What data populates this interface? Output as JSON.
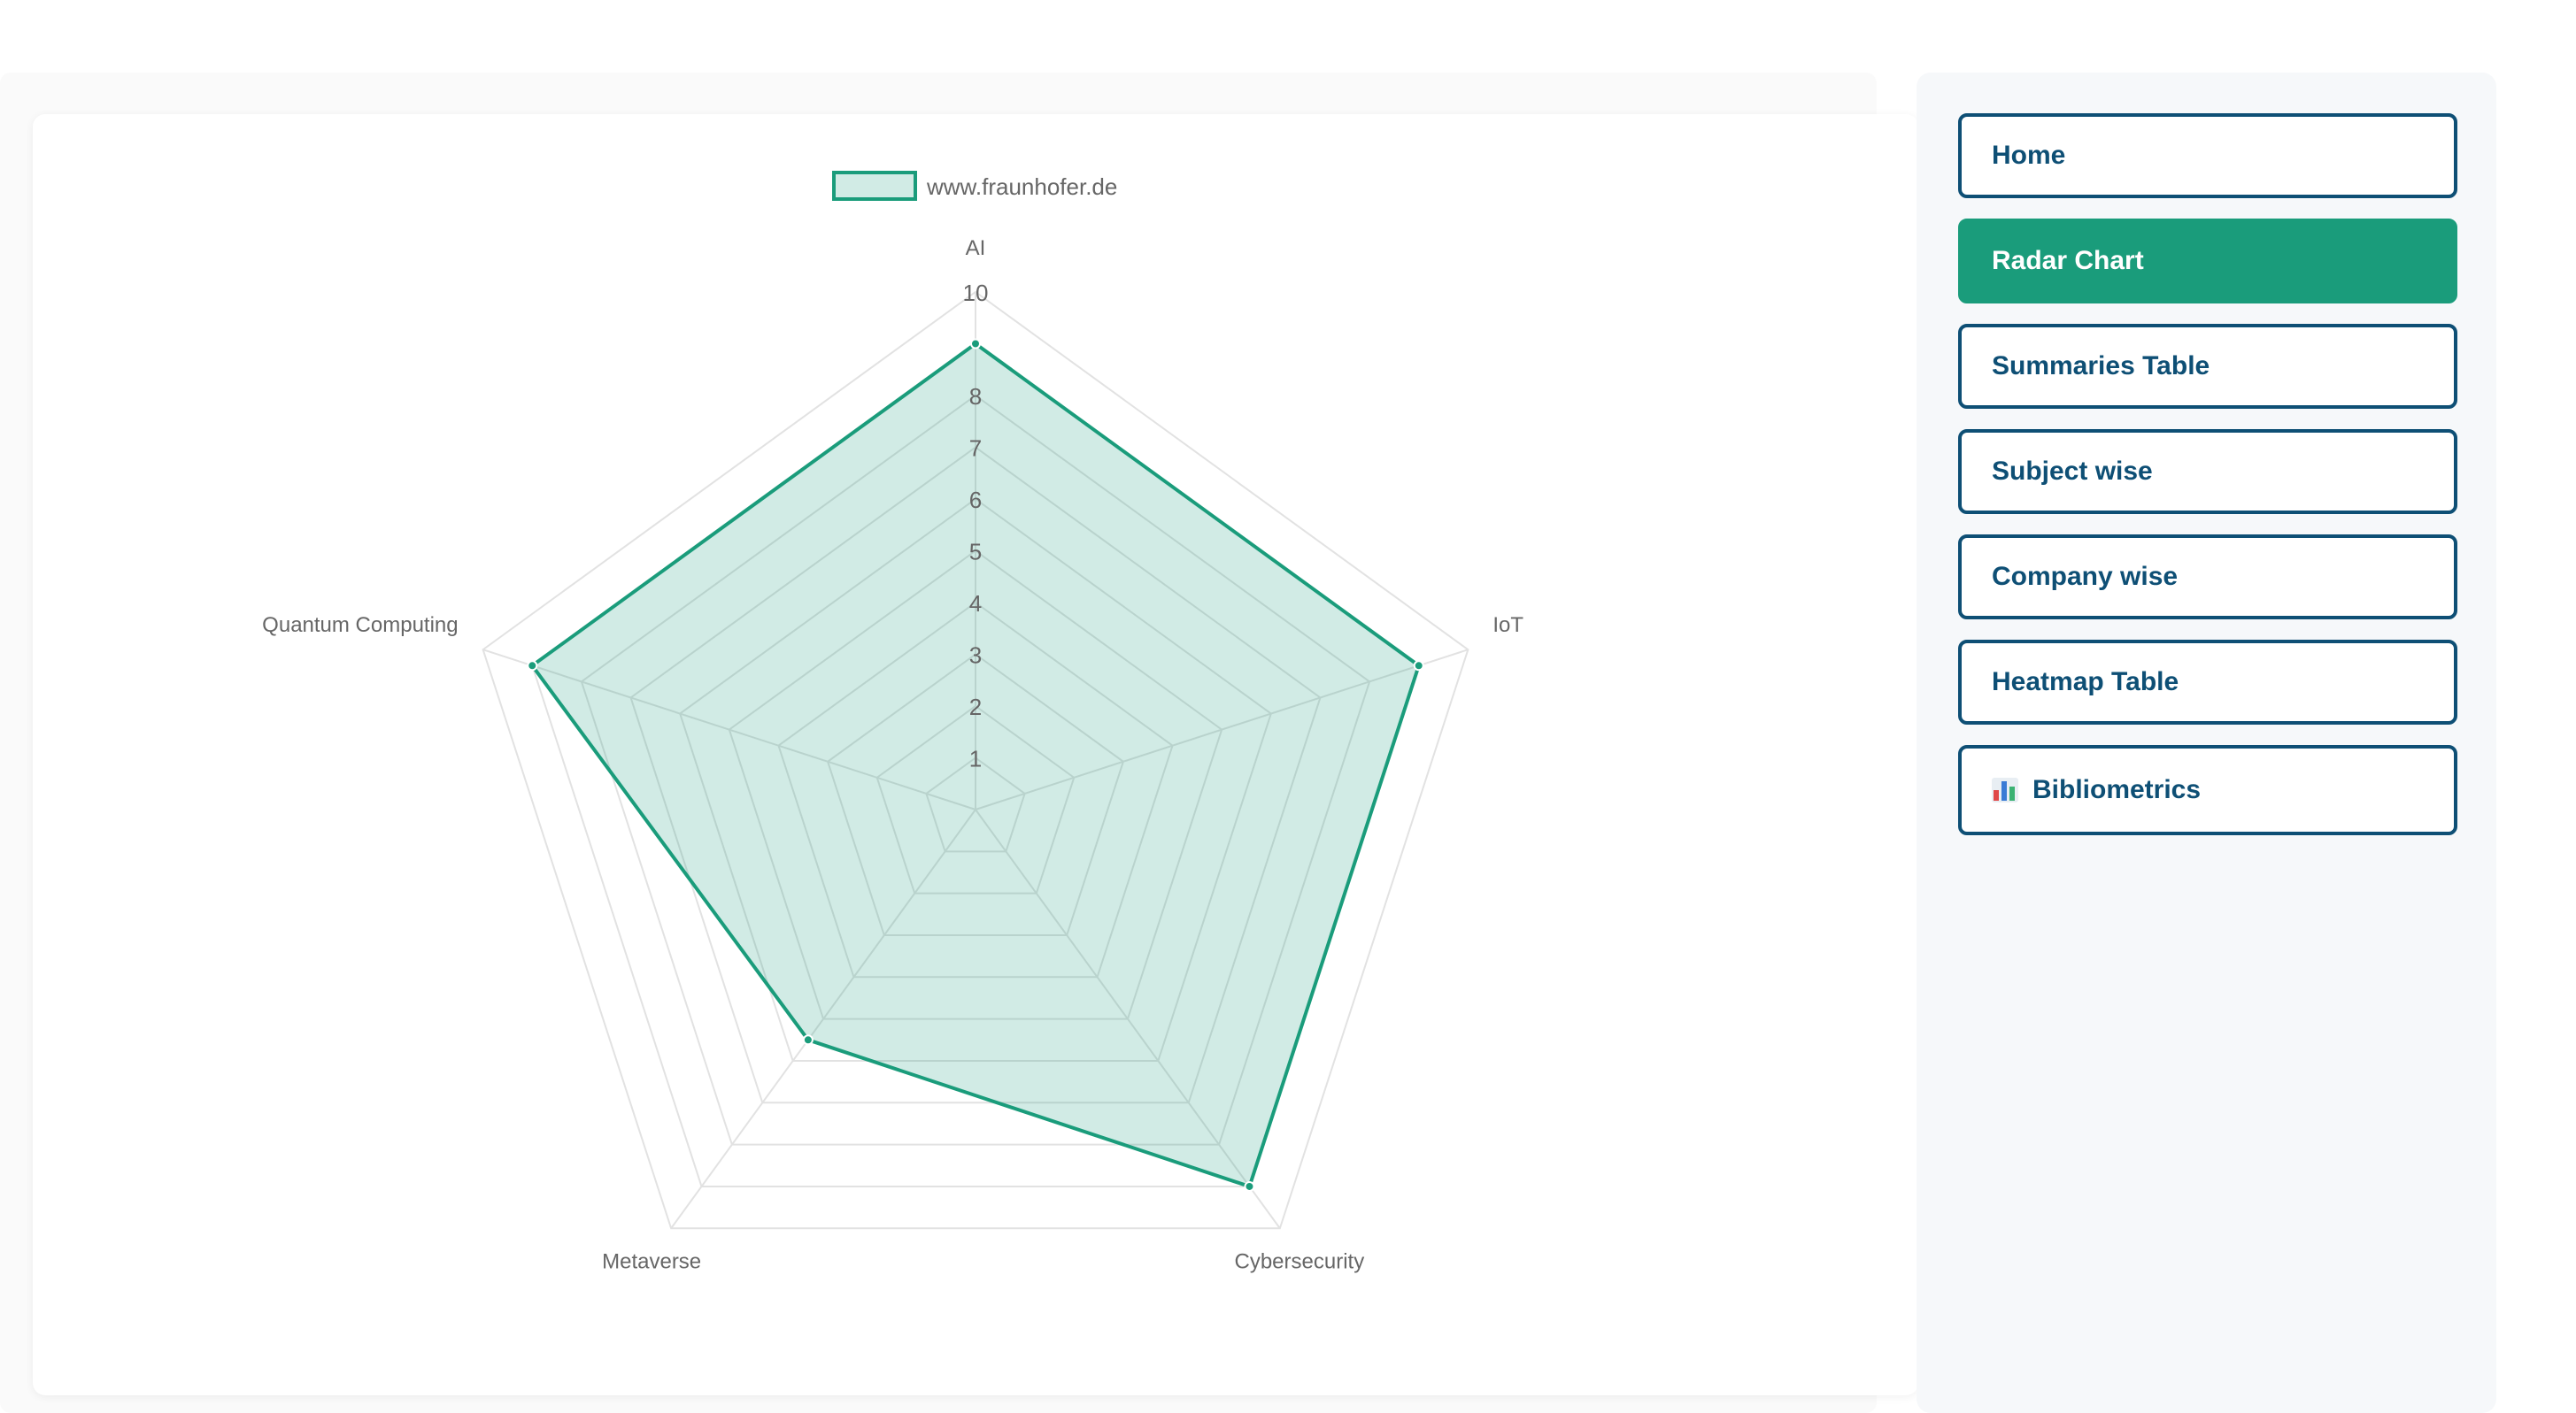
{
  "nav": {
    "items": [
      {
        "label": "Home",
        "active": false
      },
      {
        "label": "Radar Chart",
        "active": true
      },
      {
        "label": "Summaries Table",
        "active": false
      },
      {
        "label": "Subject wise",
        "active": false
      },
      {
        "label": "Company wise",
        "active": false
      },
      {
        "label": "Heatmap Table",
        "active": false
      },
      {
        "label": "Bibliometrics",
        "active": false,
        "icon": "bar-chart-icon"
      }
    ]
  },
  "colors": {
    "accent": "#1a9c7b",
    "nav_border": "#0e4f75",
    "series_fill": "rgba(26,156,123,0.2)"
  },
  "chart_data": {
    "type": "radar",
    "categories": [
      "AI",
      "IoT",
      "Cybersecurity",
      "Metaverse",
      "Quantum Computing"
    ],
    "series": [
      {
        "name": "www.fraunhofer.de",
        "values": [
          9,
          9,
          9,
          5.5,
          9
        ]
      }
    ],
    "rlim": [
      0,
      10
    ],
    "tick_labels": [
      "1",
      "2",
      "3",
      "4",
      "5",
      "6",
      "7",
      "8",
      "10"
    ],
    "legend": "top",
    "grid": true
  }
}
